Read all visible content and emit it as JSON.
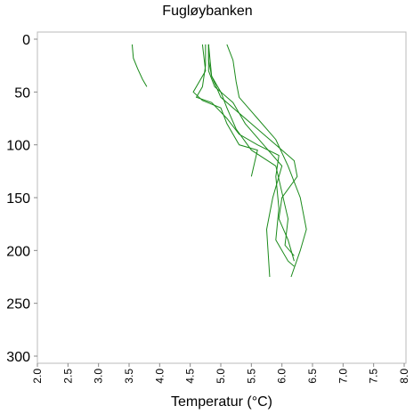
{
  "chart_data": {
    "type": "line",
    "title": "Fugløybanken",
    "x_label": "Temperatur (°C)",
    "xlim": [
      2,
      8
    ],
    "ylim": [
      300,
      0
    ],
    "xticks": [
      {
        "value": 2,
        "label": "2.0"
      },
      2.5,
      {
        "value": 3,
        "label": "3.0"
      },
      3.5,
      {
        "value": 4,
        "label": "4.0"
      },
      4.5,
      {
        "value": 5,
        "label": "5.0"
      },
      5.5,
      {
        "value": 6,
        "label": "6.0"
      },
      6.5,
      {
        "value": 7,
        "label": "7.0"
      },
      7.5,
      {
        "value": 8,
        "label": "8.0"
      }
    ],
    "yticks": [
      0,
      50,
      100,
      150,
      200,
      250,
      300
    ],
    "series": [
      {
        "color": "#1a8a1a",
        "x": [
          3.55,
          3.57,
          3.64,
          3.72,
          3.79
        ],
        "values": [
          5,
          18,
          28,
          38,
          45
        ]
      },
      {
        "color": "#1a8a1a",
        "x": [
          4.8,
          4.8,
          4.85,
          5.0,
          5.3,
          5.6,
          5.9,
          6.2,
          6.25,
          6.0,
          5.95,
          6.1,
          6.2
        ],
        "values": [
          5,
          20,
          35,
          55,
          70,
          85,
          100,
          115,
          130,
          150,
          170,
          190,
          210
        ]
      },
      {
        "color": "#1a8a1a",
        "x": [
          4.75,
          4.75,
          4.7,
          4.6,
          4.85,
          5.1,
          5.3,
          5.6,
          5.95,
          5.9,
          5.95,
          5.9,
          6.1,
          6.2
        ],
        "values": [
          5,
          25,
          45,
          55,
          60,
          75,
          90,
          100,
          110,
          130,
          160,
          190,
          210,
          215
        ]
      },
      {
        "color": "#1a8a1a",
        "x": [
          4.8,
          4.8,
          4.9,
          5.2,
          5.4,
          5.7,
          6.0,
          5.85,
          5.75,
          5.8
        ],
        "values": [
          5,
          30,
          45,
          60,
          80,
          100,
          120,
          150,
          180,
          225
        ]
      },
      {
        "color": "#1a8a1a",
        "x": [
          5.1,
          5.2,
          5.25,
          5.3,
          5.6,
          5.9,
          6.1,
          6.3,
          6.4,
          6.3,
          6.15
        ],
        "values": [
          5,
          20,
          40,
          55,
          75,
          95,
          120,
          150,
          180,
          200,
          225
        ]
      },
      {
        "color": "#1a8a1a",
        "x": [
          4.8,
          4.85,
          5.0,
          5.1,
          5.25,
          5.5,
          5.9,
          6.0,
          6.1,
          6.05,
          6.2
        ],
        "values": [
          5,
          35,
          50,
          65,
          85,
          105,
          120,
          145,
          170,
          195,
          205
        ]
      },
      {
        "color": "#1a8a1a",
        "x": [
          4.7,
          4.75,
          4.55,
          4.7,
          5.0,
          5.1,
          5.3,
          5.6,
          5.5
        ],
        "values": [
          5,
          30,
          50,
          58,
          65,
          80,
          100,
          105,
          130
        ]
      }
    ]
  }
}
